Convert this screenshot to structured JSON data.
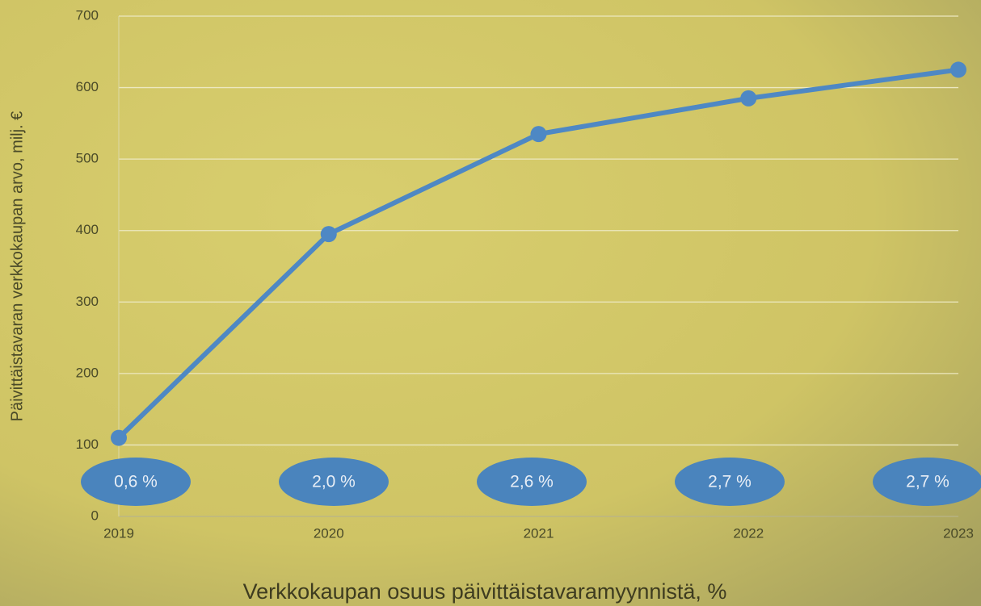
{
  "chart_data": {
    "type": "line",
    "y_label": "Päivittäistavaran verkkokaupan arvo, milj. €",
    "x_label": "Verkkokaupan osuus päivittäistavaramyynnistä, %",
    "categories": [
      "2019",
      "2020",
      "2021",
      "2022",
      "2023"
    ],
    "values": [
      110,
      395,
      535,
      585,
      625
    ],
    "color": "#4e88c4",
    "annotations": [
      "0,6 %",
      "2,0 %",
      "2,6 %",
      "2,7 %",
      "2,7 %"
    ],
    "annotation_color": "#4a84bd",
    "ylim": [
      0,
      700
    ],
    "yticks": [
      0,
      100,
      200,
      300,
      400,
      500,
      600,
      700
    ],
    "grid": true
  }
}
